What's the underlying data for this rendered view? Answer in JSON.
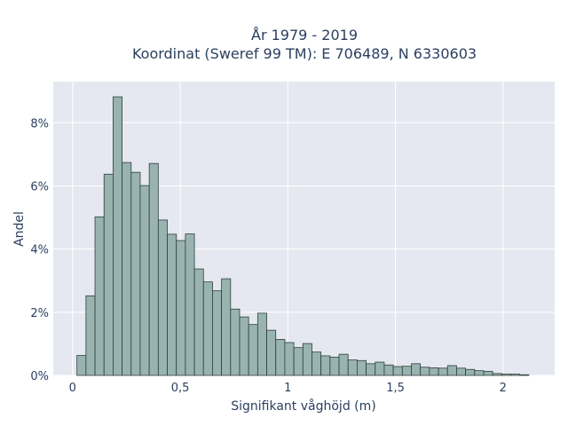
{
  "title": {
    "line1": "År 1979 - 2019",
    "line2": "Koordinat (Sweref 99 TM): E 706489, N 6330603"
  },
  "chart_data": {
    "type": "bar",
    "subtype": "histogram",
    "xlabel": "Signifikant våghöjd (m)",
    "ylabel": "Andel",
    "xlim": [
      -0.09,
      2.24
    ],
    "ylim": [
      0,
      0.093
    ],
    "x_ticks": [
      {
        "value": 0,
        "label": "0"
      },
      {
        "value": 0.5,
        "label": "0,5"
      },
      {
        "value": 1,
        "label": "1"
      },
      {
        "value": 1.5,
        "label": "1,5"
      },
      {
        "value": 2,
        "label": "2"
      }
    ],
    "y_ticks": [
      {
        "value": 0,
        "label": "0%"
      },
      {
        "value": 0.02,
        "label": "2%"
      },
      {
        "value": 0.04,
        "label": "4%"
      },
      {
        "value": 0.06,
        "label": "6%"
      },
      {
        "value": 0.08,
        "label": "8%"
      }
    ],
    "bin_start": 0.02,
    "bin_width": 0.042,
    "values": [
      0.0063,
      0.0252,
      0.0502,
      0.0637,
      0.0882,
      0.0674,
      0.0643,
      0.0601,
      0.0671,
      0.0492,
      0.0447,
      0.0427,
      0.0448,
      0.0337,
      0.0296,
      0.0268,
      0.0306,
      0.021,
      0.0185,
      0.0161,
      0.0197,
      0.0143,
      0.0114,
      0.0104,
      0.0088,
      0.0101,
      0.0074,
      0.0062,
      0.0058,
      0.0067,
      0.0049,
      0.0047,
      0.0037,
      0.0042,
      0.0033,
      0.0028,
      0.0029,
      0.0037,
      0.0026,
      0.0024,
      0.0023,
      0.0031,
      0.0023,
      0.0019,
      0.0015,
      0.0013,
      0.0006,
      0.0004,
      0.0004,
      0.0002
    ],
    "grid": true,
    "colors": {
      "bar_fill": "#98b3b0",
      "bar_stroke": "#2f3f3d",
      "plot_bg": "#e5e8f0",
      "grid": "#ffffff"
    }
  }
}
